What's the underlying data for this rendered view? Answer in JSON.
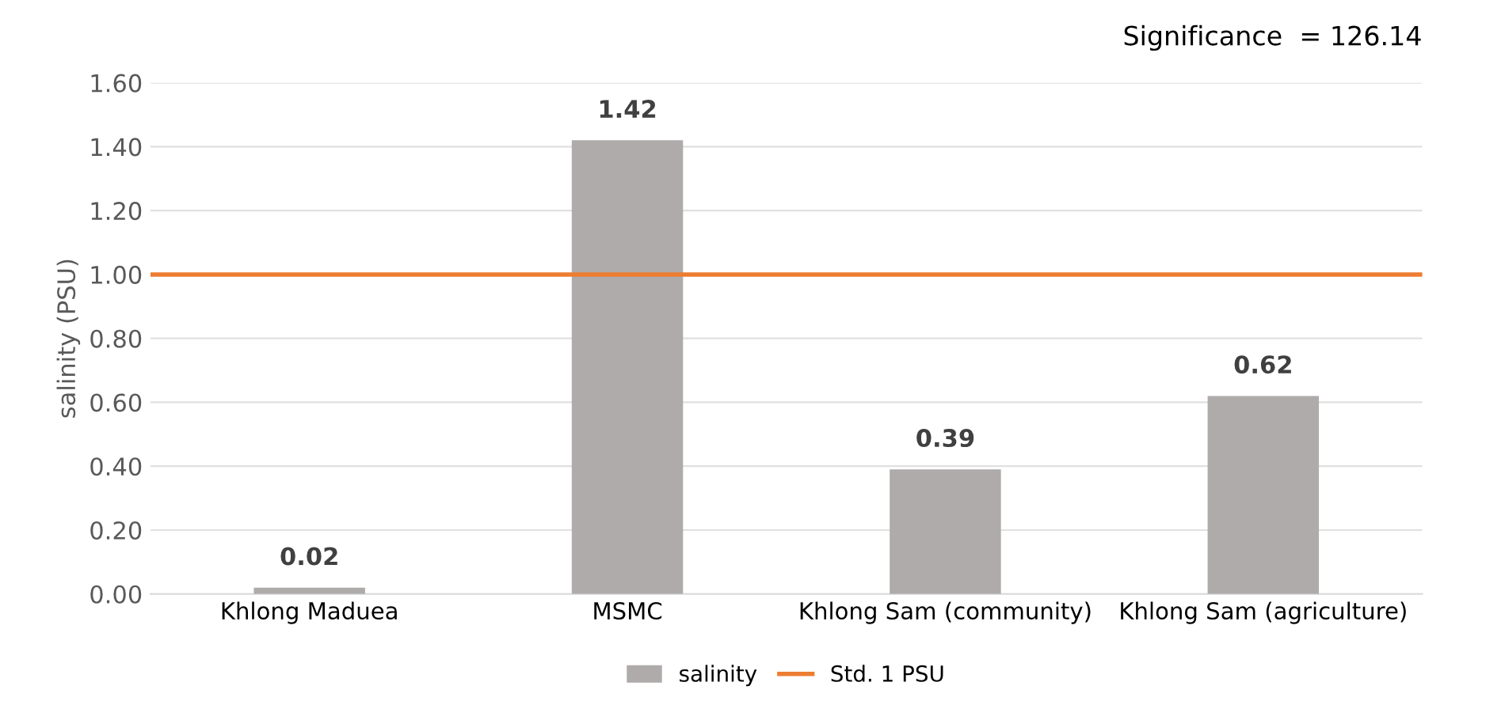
{
  "chart_data": {
    "type": "bar",
    "categories": [
      "Khlong Maduea",
      "MSMC",
      "Khlong Sam (community)",
      "Khlong Sam (agriculture)"
    ],
    "series": [
      {
        "name": "salinity",
        "color": "#afabab",
        "values": [
          0.02,
          1.42,
          0.39,
          0.62
        ]
      }
    ],
    "ylabel": "salinity (PSU)",
    "ylim": [
      0,
      1.6
    ],
    "yticks": [
      {
        "value": 0,
        "label": "0.00"
      },
      {
        "value": 0.2,
        "label": "0.20"
      },
      {
        "value": 0.4,
        "label": "0.40"
      },
      {
        "value": 0.6,
        "label": "0.60"
      },
      {
        "value": 0.8,
        "label": "0.80"
      },
      {
        "value": 1.0,
        "label": "1.00"
      },
      {
        "value": 1.2,
        "label": "1.20"
      },
      {
        "value": 1.4,
        "label": "1.40"
      },
      {
        "value": 1.6,
        "label": "1.60"
      }
    ],
    "ref_lines": [
      {
        "axis": "y",
        "value": 1.0,
        "label": "Std. 1 PSU",
        "color": "#ed7d31"
      }
    ],
    "annotations": [
      "Significance  = 126.14"
    ],
    "data_labels": true,
    "grid": "y",
    "legend": "bottom"
  }
}
